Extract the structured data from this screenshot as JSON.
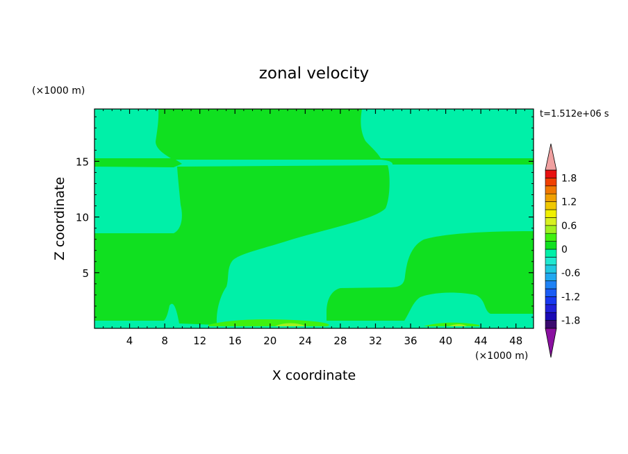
{
  "chart_data": {
    "type": "heatmap",
    "title": "zonal velocity",
    "xlabel": "X coordinate",
    "ylabel": "Z coordinate",
    "x_unit": "(×1000 m)",
    "y_unit": "(×1000 m)",
    "time_label": "t=1.512e+06 s",
    "xlim": [
      0,
      50
    ],
    "ylim": [
      0,
      19.7
    ],
    "x_ticks": [
      4,
      8,
      12,
      16,
      20,
      24,
      28,
      32,
      36,
      40,
      44,
      48
    ],
    "y_ticks": [
      5,
      10,
      15
    ],
    "colorbar": {
      "levels": [
        -2.0,
        -1.8,
        -1.6,
        -1.4,
        -1.2,
        -1.0,
        -0.8,
        -0.6,
        -0.4,
        -0.2,
        0.0,
        0.2,
        0.4,
        0.6,
        0.8,
        1.0,
        1.2,
        1.4,
        1.6,
        1.8,
        2.0
      ],
      "labels": [
        "-1.8",
        "-1.2",
        "-0.6",
        "0",
        "0.6",
        "1.2",
        "1.8"
      ],
      "label_values": [
        -1.8,
        -1.2,
        -0.6,
        0,
        0.6,
        1.2,
        1.8
      ],
      "colors": [
        "#3a0a6e",
        "#1a0ab4",
        "#2020d8",
        "#1838f0",
        "#1a5cf5",
        "#1e82f5",
        "#20a8f0",
        "#20c8e0",
        "#20e8d0",
        "#00f0a8",
        "#10e020",
        "#40f010",
        "#a0f020",
        "#d8f020",
        "#f0f000",
        "#f0c800",
        "#f0a000",
        "#f07800",
        "#f04000",
        "#e81010"
      ],
      "under_color": "#8a10a0",
      "over_color": "#f0a0a0"
    },
    "regions": [
      {
        "range": "-0.2 to 0",
        "color": "#00f0a8"
      },
      {
        "range": "0 to 0.2",
        "color": "#10e020"
      },
      {
        "range": "0.2 to 0.4",
        "color": "#40f010"
      },
      {
        "range": "0.4 to 0.6",
        "color": "#a0f020"
      }
    ]
  }
}
